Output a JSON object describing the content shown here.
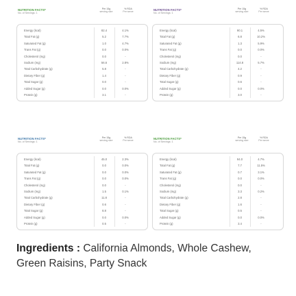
{
  "colors": {
    "panel1_title": "#4a9b3c",
    "panel2_title": "#6b4c8e",
    "panel3_title": "#3c76a8",
    "panel4_title": "#4a9b3c",
    "border": "#d8d8d8"
  },
  "panels": [
    {
      "title": "NUTRITION FACTS*",
      "servings": "No. of Servings: 1",
      "col1_line1": "Per 15g",
      "col1_line2": "serving size",
      "col2_line1": "% RDA",
      "col2_line2": "Per serve",
      "rows": [
        {
          "label": "Energy (kcal)",
          "value": "82.4",
          "rda": "4.1%"
        },
        {
          "label": "Total Fat (g)",
          "value": "5.2",
          "rda": "7.7%"
        },
        {
          "label": "Saturated Fat (g)",
          "value": "1.0",
          "rda": "4.7%"
        },
        {
          "label": "Trans Fat (g)",
          "value": "0.0",
          "rda": "0.0%"
        },
        {
          "label": "Cholesterol (mg)",
          "value": "0.0",
          "rda": "-"
        },
        {
          "label": "Sodium (mg)",
          "value": "56.6",
          "rda": "2.8%"
        },
        {
          "label": "Total Carbohydrate (g)",
          "value": "5.8",
          "rda": "-"
        },
        {
          "label": "Dietary Fiber (g)",
          "value": "1.4",
          "rda": "-"
        },
        {
          "label": "Total Sugar (g)",
          "value": "0.0",
          "rda": "-"
        },
        {
          "label": "Added Sugar (g)",
          "value": "0.0",
          "rda": "0.0%"
        },
        {
          "label": "Protein (g)",
          "value": "3.1",
          "rda": "-"
        }
      ]
    },
    {
      "title": "NUTRITION FACTS*",
      "servings": "No. of Servings: 1",
      "col1_line1": "Per 15g",
      "col1_line2": "serving size",
      "col2_line1": "% RDA",
      "col2_line2": "Per serve",
      "rows": [
        {
          "label": "Energy (kcal)",
          "value": "90.1",
          "rda": "4.5%"
        },
        {
          "label": "Total Fat (g)",
          "value": "6.8",
          "rda": "10.2%"
        },
        {
          "label": "Saturated Fat (g)",
          "value": "1.3",
          "rda": "5.9%"
        },
        {
          "label": "Trans Fat (g)",
          "value": "0.0",
          "rda": "0.0%"
        },
        {
          "label": "Cholesterol (mg)",
          "value": "0.0",
          "rda": "-"
        },
        {
          "label": "Sodium (mg)",
          "value": "114.8",
          "rda": "5.7%"
        },
        {
          "label": "Total Carbohydrate (g)",
          "value": "4.2",
          "rda": "-"
        },
        {
          "label": "Dietary Fiber (g)",
          "value": "0.9",
          "rda": "-"
        },
        {
          "label": "Total Sugar (g)",
          "value": "0.6",
          "rda": "-"
        },
        {
          "label": "Added Sugar (g)",
          "value": "0.0",
          "rda": "0.0%"
        },
        {
          "label": "Protein (g)",
          "value": "3.0",
          "rda": "-"
        }
      ]
    },
    {
      "title": "NUTRITION FACTS*",
      "servings": "No. of Servings: 1",
      "col1_line1": "Per 15g",
      "col1_line2": "serving size",
      "col2_line1": "% RDA",
      "col2_line2": "Per serve",
      "rows": [
        {
          "label": "Energy (kcal)",
          "value": "45.0",
          "rda": "2.3%"
        },
        {
          "label": "Total Fat (g)",
          "value": "0.0",
          "rda": "0.0%"
        },
        {
          "label": "Saturated Fat (g)",
          "value": "0.0",
          "rda": "0.0%"
        },
        {
          "label": "Trans Fat (g)",
          "value": "0.0",
          "rda": "0.0%"
        },
        {
          "label": "Cholesterol (mg)",
          "value": "0.0",
          "rda": "-"
        },
        {
          "label": "Sodium (mg)",
          "value": "1.5",
          "rda": "0.1%"
        },
        {
          "label": "Total Carbohydrate (g)",
          "value": "11.8",
          "rda": "-"
        },
        {
          "label": "Dietary Fiber (g)",
          "value": "0.6",
          "rda": "-"
        },
        {
          "label": "Total Sugar (g)",
          "value": "8.8",
          "rda": "-"
        },
        {
          "label": "Added Sugar (g)",
          "value": "0.0",
          "rda": "0.0%"
        },
        {
          "label": "Protein (g)",
          "value": "0.5",
          "rda": "-"
        }
      ]
    },
    {
      "title": "NUTRITION FACTS*",
      "servings": "No. of Servings: 1",
      "col1_line1": "Per 15g",
      "col1_line2": "serving size",
      "col2_line1": "% RDA",
      "col2_line2": "Per serve",
      "rows": [
        {
          "label": "Energy (kcal)",
          "value": "94.0",
          "rda": "4.7%"
        },
        {
          "label": "Total Fat (g)",
          "value": "7.7",
          "rda": "11.5%"
        },
        {
          "label": "Saturated Fat (g)",
          "value": "0.7",
          "rda": "3.1%"
        },
        {
          "label": "Trans Fat (g)",
          "value": "0.0",
          "rda": "0.0%"
        },
        {
          "label": "Cholesterol (mg)",
          "value": "0.0",
          "rda": "-"
        },
        {
          "label": "Sodium (mg)",
          "value": "3.3",
          "rda": "0.2%"
        },
        {
          "label": "Total Carbohydrate (g)",
          "value": "2.8",
          "rda": "-"
        },
        {
          "label": "Dietary Fiber (g)",
          "value": "1.6",
          "rda": "-"
        },
        {
          "label": "Total Sugar (g)",
          "value": "0.5",
          "rda": "-"
        },
        {
          "label": "Added Sugar (g)",
          "value": "0.0",
          "rda": "0.0%"
        },
        {
          "label": "Protein (g)",
          "value": "3.4",
          "rda": "-"
        }
      ]
    }
  ],
  "ingredients": {
    "heading": "Ingredients :",
    "text": " California Almonds, Whole Cashew, Green Raisins, Party Snack"
  }
}
